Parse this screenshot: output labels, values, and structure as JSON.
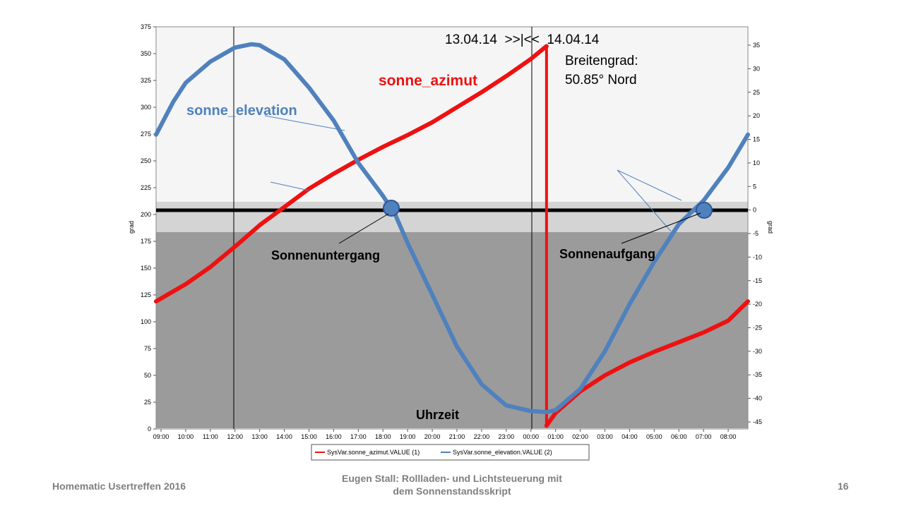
{
  "chart_data": {
    "type": "line",
    "x_ticks": [
      "09:00",
      "10:00",
      "11:00",
      "12:00",
      "13:00",
      "14:00",
      "15:00",
      "16:00",
      "17:00",
      "18:00",
      "19:00",
      "20:00",
      "21:00",
      "22:00",
      "23:00",
      "00:00",
      "01:00",
      "02:00",
      "03:00",
      "04:00",
      "05:00",
      "06:00",
      "07:00",
      "08:00"
    ],
    "y_left": {
      "label": "grad",
      "ticks": [
        0,
        25,
        50,
        75,
        100,
        125,
        150,
        175,
        200,
        225,
        250,
        275,
        300,
        325,
        350,
        375
      ],
      "range": [
        0,
        375
      ]
    },
    "y_right": {
      "label": "grad",
      "ticks": [
        35,
        30,
        25,
        20,
        15,
        10,
        5,
        0,
        -5,
        -10,
        -15,
        -20,
        -25,
        -30,
        -35,
        -40,
        -45
      ],
      "range": [
        -46.5,
        38.9
      ]
    },
    "series": [
      {
        "name": "SysVar.sonne_azimut.VALUE (1)",
        "axis": "left",
        "color": "#ee1111",
        "segments": [
          {
            "x": [
              "13.04.14 08:48",
              "13.04.14 10:00",
              "13.04.14 11:00",
              "13.04.14 12:00",
              "13.04.14 13:00",
              "13.04.14 14:00",
              "13.04.14 15:00",
              "13.04.14 16:00",
              "13.04.14 17:00",
              "13.04.14 18:00",
              "13.04.14 19:00",
              "13.04.14 20:00",
              "13.04.14 21:00",
              "13.04.14 22:00",
              "13.04.14 23:00",
              "14.04.14 00:00",
              "14.04.14 00:38"
            ],
            "y": [
              119,
              135,
              151,
              170,
              190,
              207,
              224,
              238,
              251,
              263,
              274,
              286,
              300,
              314,
              329,
              345,
              357
            ]
          },
          {
            "x": [
              "14.04.14 00:38",
              "14.04.14 01:00",
              "14.04.14 02:00",
              "14.04.14 03:00",
              "14.04.14 04:00",
              "14.04.14 05:00",
              "14.04.14 06:00",
              "14.04.14 07:00",
              "14.04.14 08:00",
              "14.04.14 08:48"
            ],
            "y": [
              3,
              15,
              35,
              50,
              62,
              72,
              81,
              90,
              101,
              119
            ]
          }
        ]
      },
      {
        "name": "SysVar.sonne_elevation.VALUE (2)",
        "axis": "right",
        "color": "#4f81bd",
        "x": [
          "13.04.14 08:48",
          "13.04.14 09:30",
          "13.04.14 10:00",
          "13.04.14 11:00",
          "13.04.14 12:00",
          "13.04.14 12:40",
          "13.04.14 13:00",
          "13.04.14 14:00",
          "13.04.14 15:00",
          "13.04.14 16:00",
          "13.04.14 17:00",
          "13.04.14 18:00",
          "13.04.14 18:30",
          "13.04.14 19:00",
          "13.04.14 20:00",
          "13.04.14 21:00",
          "13.04.14 22:00",
          "13.04.14 23:00",
          "14.04.14 00:00",
          "14.04.14 00:40",
          "14.04.14 01:00",
          "14.04.14 02:00",
          "14.04.14 03:00",
          "14.04.14 04:00",
          "14.04.14 05:00",
          "14.04.14 06:00",
          "14.04.14 07:00",
          "14.04.14 08:00",
          "14.04.14 08:48"
        ],
        "y": [
          16,
          23,
          27,
          31.5,
          34.5,
          35.2,
          35,
          32,
          26,
          19,
          10,
          3,
          -1,
          -7,
          -18,
          -29,
          -37,
          -41.5,
          -42.7,
          -42.9,
          -42.5,
          -38,
          -30,
          -20,
          -11,
          -3,
          2,
          9,
          16
        ]
      }
    ],
    "annotations": {
      "date_range": "13.04.14  >>|<<  14.04.14",
      "latitude_line1": "Breitengrad:",
      "latitude_line2": "50.85° Nord",
      "azimut_label": "sonne_azimut",
      "elevation_label": "sonne_elevation",
      "sunset": "Sonnenuntergang",
      "sunrise": "Sonnenaufgang",
      "time_label": "Uhrzeit"
    },
    "legend": [
      "SysVar.sonne_azimut.VALUE (1)",
      "SysVar.sonne_elevation.VALUE (2)"
    ],
    "legend_position": "bottom",
    "grid": false
  },
  "footer": {
    "left": "Homematic Usertreffen  2016",
    "center_line1": "Eugen Stall:  Rollladen- und Lichtsteuerung mit",
    "center_line2": "dem Sonnenstandsskript",
    "right": "16"
  }
}
